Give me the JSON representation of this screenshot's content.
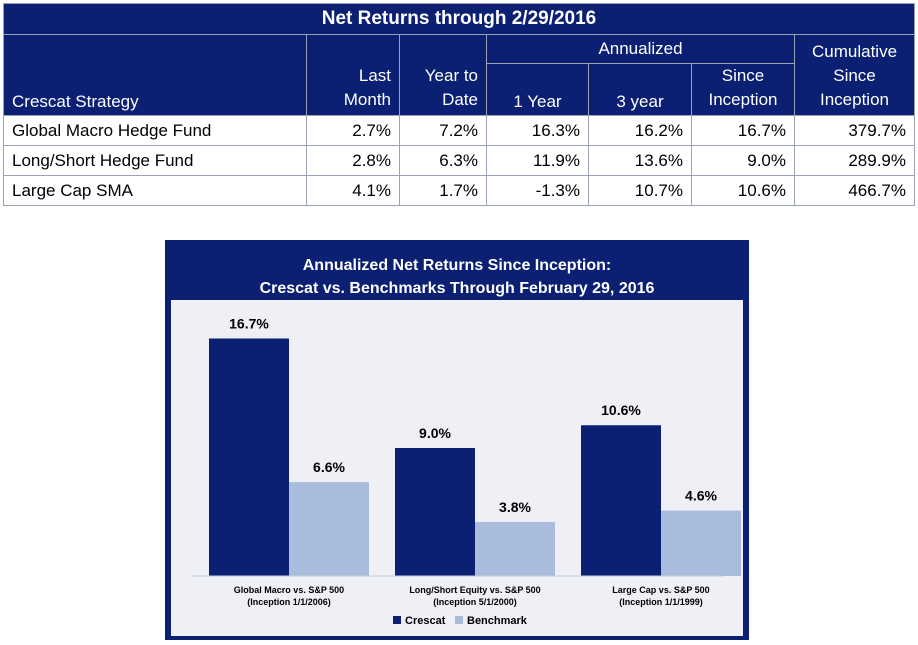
{
  "table": {
    "title": "Net Returns through 2/29/2016",
    "headers": {
      "strategy": "Crescat Strategy",
      "last_month_1": "Last",
      "last_month_2": "Month",
      "ytd_1": "Year to",
      "ytd_2": "Date",
      "annualized": "Annualized",
      "one_year": "1 Year",
      "three_year": "3 year",
      "since_inception_1": "Since",
      "since_inception_2": "Inception",
      "cumulative_1": "Cumulative",
      "cumulative_2": "Since",
      "cumulative_3": "Inception"
    },
    "rows": [
      {
        "strategy": "Global Macro Hedge Fund",
        "last_month": "2.7%",
        "ytd": "7.2%",
        "one_year": "16.3%",
        "three_year": "16.2%",
        "since_inception": "16.7%",
        "cumulative": "379.7%"
      },
      {
        "strategy": "Long/Short Hedge Fund",
        "last_month": "2.8%",
        "ytd": "6.3%",
        "one_year": "11.9%",
        "three_year": "13.6%",
        "since_inception": "9.0%",
        "cumulative": "289.9%"
      },
      {
        "strategy": "Large Cap SMA",
        "last_month": "4.1%",
        "ytd": "1.7%",
        "one_year": "-1.3%",
        "three_year": "10.7%",
        "since_inception": "10.6%",
        "cumulative": "466.7%"
      }
    ]
  },
  "colors": {
    "navy": "#0b1f73",
    "crescat": "#0b1f73",
    "benchmark": "#aabcdd",
    "plot_bg": "#eef0f6"
  },
  "chart_data": {
    "type": "bar",
    "title_line1": "Annualized Net Returns Since Inception:",
    "title_line2": "Crescat vs. Benchmarks Through February 29, 2016",
    "categories": [
      {
        "line1": "Global Macro vs. S&P 500",
        "line2": "(Inception 1/1/2006)"
      },
      {
        "line1": "Long/Short Equity vs. S&P 500",
        "line2": "(Inception 5/1/2000)"
      },
      {
        "line1": "Large Cap vs. S&P 500",
        "line2": "(Inception 1/1/1999)"
      }
    ],
    "series": [
      {
        "name": "Crescat",
        "values": [
          16.7,
          9.0,
          10.6
        ],
        "labels": [
          "16.7%",
          "9.0%",
          "10.6%"
        ],
        "color": "#0b1f73"
      },
      {
        "name": "Benchmark",
        "values": [
          6.6,
          3.8,
          4.6
        ],
        "labels": [
          "6.6%",
          "3.8%",
          "4.6%"
        ],
        "color": "#aabcdd"
      }
    ],
    "ylim": [
      0,
      18
    ],
    "grid": false,
    "legend": "bottom-center"
  }
}
